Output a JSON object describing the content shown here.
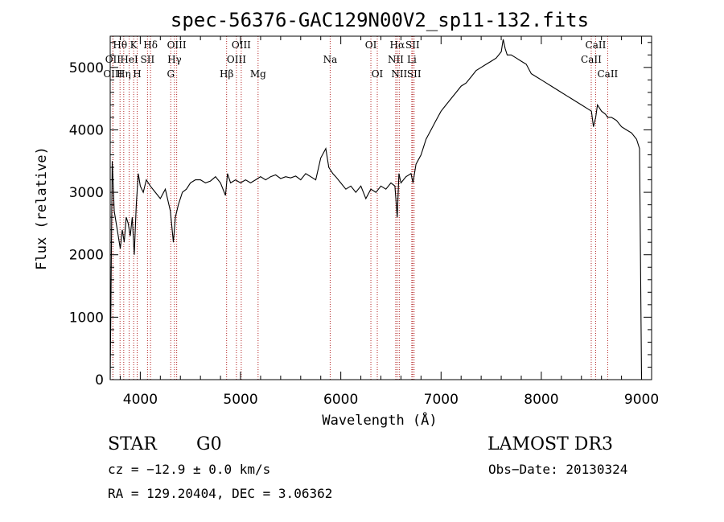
{
  "chart_data": {
    "type": "line",
    "title": "spec-56376-GAC129N00V2_sp11-132.fits",
    "xlabel": "Wavelength (Å)",
    "ylabel": "Flux (relative)",
    "xlim": [
      3700,
      9100
    ],
    "ylim": [
      0,
      5500
    ],
    "xticks": [
      4000,
      5000,
      6000,
      7000,
      8000,
      9000
    ],
    "yticks": [
      0,
      1000,
      2000,
      3000,
      4000,
      5000
    ],
    "grid": false,
    "series": [
      {
        "x": [
          3700,
          3720,
          3740,
          3760,
          3780,
          3800,
          3820,
          3840,
          3860,
          3880,
          3900,
          3920,
          3940,
          3960,
          3980,
          4000,
          4030,
          4060,
          4100,
          4150,
          4200,
          4250,
          4300,
          4330,
          4350,
          4380,
          4420,
          4460,
          4500,
          4550,
          4600,
          4650,
          4700,
          4750,
          4800,
          4850,
          4870,
          4900,
          4950,
          5000,
          5050,
          5100,
          5150,
          5200,
          5250,
          5300,
          5350,
          5400,
          5450,
          5500,
          5550,
          5600,
          5650,
          5700,
          5750,
          5800,
          5850,
          5880,
          5900,
          5920,
          5950,
          6000,
          6050,
          6100,
          6150,
          6200,
          6250,
          6300,
          6350,
          6400,
          6450,
          6500,
          6540,
          6563,
          6580,
          6600,
          6650,
          6700,
          6720,
          6750,
          6800,
          6850,
          6900,
          6950,
          7000,
          7050,
          7100,
          7150,
          7200,
          7250,
          7300,
          7350,
          7400,
          7450,
          7500,
          7550,
          7600,
          7620,
          7640,
          7660,
          7700,
          7750,
          7800,
          7850,
          7900,
          7950,
          8000,
          8050,
          8100,
          8150,
          8200,
          8250,
          8300,
          8350,
          8400,
          8450,
          8500,
          8520,
          8542,
          8560,
          8600,
          8640,
          8662,
          8700,
          8750,
          8800,
          8850,
          8900,
          8950,
          8980,
          9000
        ],
        "values": [
          0,
          3500,
          2700,
          2500,
          2300,
          2100,
          2400,
          2200,
          2600,
          2500,
          2300,
          2600,
          2000,
          2800,
          3300,
          3100,
          3000,
          3200,
          3100,
          3000,
          2900,
          3050,
          2700,
          2200,
          2600,
          2800,
          3000,
          3050,
          3150,
          3200,
          3200,
          3150,
          3180,
          3250,
          3150,
          2950,
          3300,
          3150,
          3200,
          3150,
          3200,
          3150,
          3200,
          3250,
          3200,
          3250,
          3280,
          3220,
          3250,
          3230,
          3260,
          3200,
          3300,
          3250,
          3200,
          3550,
          3700,
          3400,
          3350,
          3300,
          3250,
          3150,
          3050,
          3100,
          3000,
          3100,
          2900,
          3050,
          3000,
          3100,
          3050,
          3150,
          3100,
          2600,
          3300,
          3150,
          3250,
          3300,
          3150,
          3450,
          3600,
          3850,
          4000,
          4150,
          4300,
          4400,
          4500,
          4600,
          4700,
          4750,
          4850,
          4950,
          5000,
          5050,
          5100,
          5150,
          5250,
          5450,
          5300,
          5200,
          5200,
          5150,
          5100,
          5050,
          4900,
          4850,
          4800,
          4750,
          4700,
          4650,
          4600,
          4550,
          4500,
          4450,
          4400,
          4350,
          4300,
          4050,
          4200,
          4400,
          4300,
          4250,
          4200,
          4200,
          4150,
          4050,
          4000,
          3950,
          3850,
          3700,
          0
        ]
      }
    ],
    "line_markers": [
      {
        "label": "Hθ",
        "x": 3798,
        "row": 0
      },
      {
        "label": "OII",
        "x": 3727,
        "row": 1
      },
      {
        "label": "OIII",
        "x": 3727,
        "row": 2
      },
      {
        "label": "K",
        "x": 3934,
        "row": 0
      },
      {
        "label": "Hδ",
        "x": 4102,
        "row": 0
      },
      {
        "label": "HeI",
        "x": 3889,
        "row": 1
      },
      {
        "label": "SII",
        "x": 4072,
        "row": 1
      },
      {
        "label": "Hη",
        "x": 3835,
        "row": 2
      },
      {
        "label": "H",
        "x": 3969,
        "row": 2
      },
      {
        "label": "OIII",
        "x": 4363,
        "row": 0
      },
      {
        "label": "Hγ",
        "x": 4341,
        "row": 1
      },
      {
        "label": "G",
        "x": 4304,
        "row": 2
      },
      {
        "label": "OIII",
        "x": 5007,
        "row": 0
      },
      {
        "label": "OIII",
        "x": 4959,
        "row": 1
      },
      {
        "label": "Hβ",
        "x": 4861,
        "row": 2
      },
      {
        "label": "Mg",
        "x": 5175,
        "row": 2
      },
      {
        "label": "Na",
        "x": 5894,
        "row": 1
      },
      {
        "label": "OI",
        "x": 6300,
        "row": 0
      },
      {
        "label": "OI",
        "x": 6364,
        "row": 2
      },
      {
        "label": "Hα",
        "x": 6563,
        "row": 0
      },
      {
        "label": "SII",
        "x": 6716,
        "row": 0
      },
      {
        "label": "NII",
        "x": 6548,
        "row": 1
      },
      {
        "label": "Li",
        "x": 6708,
        "row": 1
      },
      {
        "label": "NII",
        "x": 6583,
        "row": 2
      },
      {
        "label": "SII",
        "x": 6731,
        "row": 2
      },
      {
        "label": "CaII",
        "x": 8542,
        "row": 0
      },
      {
        "label": "CaII",
        "x": 8498,
        "row": 1
      },
      {
        "label": "CaII",
        "x": 8662,
        "row": 2
      }
    ],
    "marker_color": "#b22222",
    "line_color": "#000000"
  },
  "info": {
    "object_class": "STAR",
    "subclass": "G0",
    "survey": "LAMOST DR3",
    "redshift_text": "cz = −12.9 ± 0.0 km/s",
    "obs_date_text": "Obs−Date: 20130324",
    "coords_text": "RA = 129.20404, DEC =   3.06362"
  }
}
